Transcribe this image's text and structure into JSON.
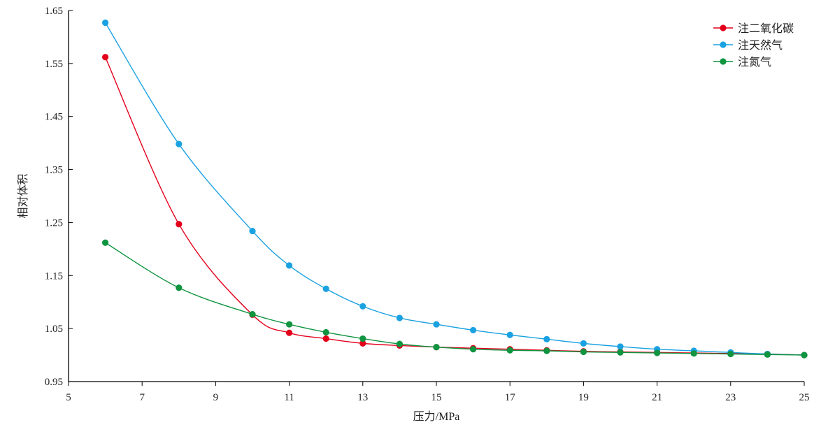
{
  "chart_data": {
    "type": "line",
    "title": "",
    "xlabel": "压力/MPa",
    "ylabel": "相对体积",
    "xlim": [
      5,
      25
    ],
    "ylim": [
      0.95,
      1.65
    ],
    "xticks": [
      5,
      7,
      9,
      11,
      13,
      15,
      17,
      19,
      21,
      23,
      25
    ],
    "yticks": [
      0.95,
      1.05,
      1.15,
      1.25,
      1.35,
      1.45,
      1.55,
      1.65
    ],
    "ytick_labels": [
      "0.95",
      "1.05",
      "1.15",
      "1.25",
      "1.35",
      "1.45",
      "1.55",
      "1.65"
    ],
    "grid": false,
    "legend_position": "top-right",
    "series": [
      {
        "name": "注二氧化碳",
        "color": "#e3001b",
        "points": [
          [
            6,
            1.562
          ],
          [
            8,
            1.247
          ],
          [
            10,
            1.076
          ],
          [
            11,
            1.042
          ],
          [
            12,
            1.031
          ],
          [
            13,
            1.022
          ],
          [
            14,
            1.018
          ],
          [
            15,
            1.015
          ],
          [
            16,
            1.013
          ],
          [
            17,
            1.011
          ],
          [
            18,
            1.009
          ],
          [
            19,
            1.007
          ],
          [
            20,
            1.006
          ],
          [
            21,
            1.005
          ],
          [
            22,
            1.004
          ],
          [
            23,
            1.003
          ],
          [
            24,
            1.002
          ],
          [
            25,
            1.0
          ]
        ]
      },
      {
        "name": "注天然气",
        "color": "#1aa1e1",
        "points": [
          [
            6,
            1.627
          ],
          [
            8,
            1.398
          ],
          [
            10,
            1.234
          ],
          [
            11,
            1.169
          ],
          [
            12,
            1.125
          ],
          [
            13,
            1.092
          ],
          [
            14,
            1.07
          ],
          [
            15,
            1.058
          ],
          [
            16,
            1.047
          ],
          [
            17,
            1.038
          ],
          [
            18,
            1.03
          ],
          [
            19,
            1.022
          ],
          [
            20,
            1.016
          ],
          [
            21,
            1.011
          ],
          [
            22,
            1.008
          ],
          [
            23,
            1.005
          ],
          [
            24,
            1.002
          ],
          [
            25,
            1.0
          ]
        ]
      },
      {
        "name": "注氮气",
        "color": "#0f9440",
        "points": [
          [
            6,
            1.212
          ],
          [
            8,
            1.127
          ],
          [
            10,
            1.077
          ],
          [
            11,
            1.058
          ],
          [
            12,
            1.043
          ],
          [
            13,
            1.031
          ],
          [
            14,
            1.021
          ],
          [
            15,
            1.015
          ],
          [
            16,
            1.011
          ],
          [
            17,
            1.009
          ],
          [
            18,
            1.008
          ],
          [
            19,
            1.006
          ],
          [
            20,
            1.005
          ],
          [
            21,
            1.004
          ],
          [
            22,
            1.003
          ],
          [
            23,
            1.002
          ],
          [
            24,
            1.001
          ],
          [
            25,
            1.0
          ]
        ]
      }
    ]
  }
}
